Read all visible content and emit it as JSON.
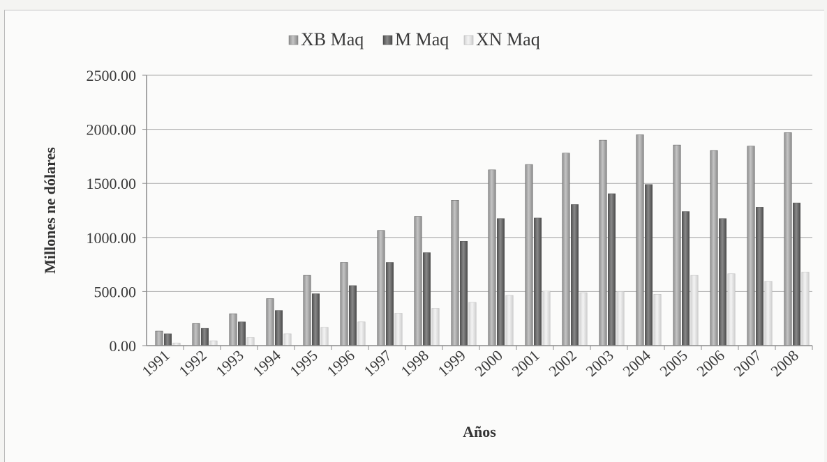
{
  "chart_data": {
    "type": "bar",
    "title": "",
    "xlabel": "Años",
    "ylabel": "Millones ne dólares",
    "ylim": [
      0,
      2500
    ],
    "y_ticks": [
      "0.00",
      "500.00",
      "1000.00",
      "1500.00",
      "2000.00",
      "2500.00"
    ],
    "y_tick_values": [
      0,
      500,
      1000,
      1500,
      2000,
      2500
    ],
    "grid": true,
    "legend_position": "top",
    "categories": [
      "1991",
      "1992",
      "1993",
      "1994",
      "1995",
      "1996",
      "1997",
      "1998",
      "1999",
      "2000",
      "2001",
      "2002",
      "2003",
      "2004",
      "2005",
      "2006",
      "2007",
      "2008"
    ],
    "series": [
      {
        "name": "XB Maq",
        "color": "#a9a9a9",
        "values": [
          135,
          205,
          295,
          435,
          650,
          770,
          1065,
          1195,
          1345,
          1625,
          1675,
          1780,
          1900,
          1950,
          1855,
          1805,
          1845,
          1970
        ]
      },
      {
        "name": "M Maq",
        "color": "#6e6e6e",
        "values": [
          110,
          160,
          220,
          325,
          480,
          555,
          770,
          860,
          965,
          1175,
          1180,
          1305,
          1405,
          1490,
          1240,
          1175,
          1280,
          1320
        ]
      },
      {
        "name": "XN Maq",
        "color": "#e3e3e3",
        "values": [
          25,
          45,
          75,
          110,
          170,
          220,
          300,
          345,
          400,
          465,
          505,
          490,
          500,
          475,
          650,
          665,
          595,
          680
        ]
      }
    ]
  }
}
